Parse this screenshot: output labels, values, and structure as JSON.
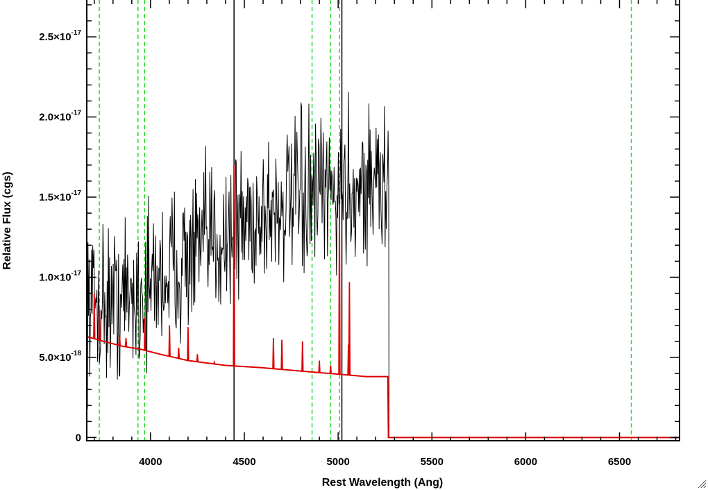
{
  "chart_data": {
    "type": "line",
    "title": "",
    "xlabel": "Rest Wavelength (Ang)",
    "ylabel": "Relative Flux (cgs)",
    "xlim": [
      3660,
      6820
    ],
    "ylim": [
      -2e-19,
      2.73e-17
    ],
    "x_ticks": [
      {
        "value": 4000,
        "label": "4000"
      },
      {
        "value": 4500,
        "label": "4500"
      },
      {
        "value": 5000,
        "label": "5000"
      },
      {
        "value": 5500,
        "label": "5500"
      },
      {
        "value": 6000,
        "label": "6000"
      },
      {
        "value": 6500,
        "label": "6500"
      }
    ],
    "y_ticks": [
      {
        "value": 0,
        "mantissa": "0",
        "exponent": ""
      },
      {
        "value": 5e-18,
        "mantissa": "5.0×10",
        "exponent": "-18"
      },
      {
        "value": 1e-17,
        "mantissa": "1.0×10",
        "exponent": "-17"
      },
      {
        "value": 1.5e-17,
        "mantissa": "1.5×10",
        "exponent": "-17"
      },
      {
        "value": 2e-17,
        "mantissa": "2.0×10",
        "exponent": "-17"
      },
      {
        "value": 2.5e-17,
        "mantissa": "2.5×10",
        "exponent": "-17"
      }
    ],
    "grid": false,
    "legend": "none",
    "series": [
      {
        "style": "noisy-spectrum",
        "color": "#000000",
        "x_range": [
          3660,
          5270
        ],
        "trend_x": [
          3660,
          3800,
          3950,
          4100,
          4300,
          4500,
          4700,
          4900,
          5050,
          5200,
          5268
        ],
        "trend_y": [
          8.5e-18,
          8.5e-18,
          9e-18,
          1.05e-17,
          1.2e-17,
          1.35e-17,
          1.45e-17,
          1.5e-17,
          1.55e-17,
          1.6e-17,
          1.55e-17
        ],
        "scatter_y": 4.5e-18,
        "after_end_y": 0
      },
      {
        "style": "model-continuum",
        "color": "#dd0000",
        "x": [
          3660,
          3750,
          3850,
          3950,
          4050,
          4200,
          4400,
          4600,
          4800,
          4950,
          5050,
          5150,
          5265,
          5268,
          6820
        ],
        "y": [
          6.3e-18,
          6e-18,
          5.7e-18,
          5.5e-18,
          5.2e-18,
          4.8e-18,
          4.5e-18,
          4.35e-18,
          4.15e-18,
          4e-18,
          3.9e-18,
          3.8e-18,
          3.8e-18,
          0,
          0
        ],
        "emission_lines": [
          {
            "x": 3700,
            "peak": 9e-18
          },
          {
            "x": 3728,
            "peak": 8e-18
          },
          {
            "x": 3835,
            "peak": 6.4e-18
          },
          {
            "x": 3869,
            "peak": 6.2e-18
          },
          {
            "x": 3970,
            "peak": 7.5e-18
          },
          {
            "x": 4101,
            "peak": 7e-18
          },
          {
            "x": 4150,
            "peak": 5.6e-18
          },
          {
            "x": 4200,
            "peak": 6.9e-18
          },
          {
            "x": 4250,
            "peak": 5.2e-18
          },
          {
            "x": 4340,
            "peak": 4.7e-18
          },
          {
            "x": 4445,
            "peak": 1.7e-17
          },
          {
            "x": 4655,
            "peak": 6.2e-18
          },
          {
            "x": 4700,
            "peak": 6.1e-18
          },
          {
            "x": 4810,
            "peak": 6e-18
          },
          {
            "x": 4900,
            "peak": 4.8e-18
          },
          {
            "x": 4960,
            "peak": 4.5e-18
          },
          {
            "x": 5007,
            "peak": 1.46e-17
          },
          {
            "x": 5055,
            "peak": 5.8e-18
          },
          {
            "x": 5060,
            "peak": 9.7e-18
          }
        ]
      }
    ],
    "reference_lines": [
      {
        "x": 3727,
        "style": "dashed",
        "color": "#22dd22"
      },
      {
        "x": 3933,
        "style": "dashed",
        "color": "#22dd22"
      },
      {
        "x": 3968,
        "style": "dashed",
        "color": "#22dd22"
      },
      {
        "x": 4861,
        "style": "dashed",
        "color": "#22dd22"
      },
      {
        "x": 4959,
        "style": "dashed",
        "color": "#22dd22"
      },
      {
        "x": 5007,
        "style": "dashed",
        "color": "#22dd22"
      },
      {
        "x": 6563,
        "style": "dashed",
        "color": "#22dd22"
      },
      {
        "x": 4445,
        "style": "solid",
        "color": "#000000"
      },
      {
        "x": 5020,
        "style": "solid",
        "color": "#000000"
      }
    ]
  }
}
